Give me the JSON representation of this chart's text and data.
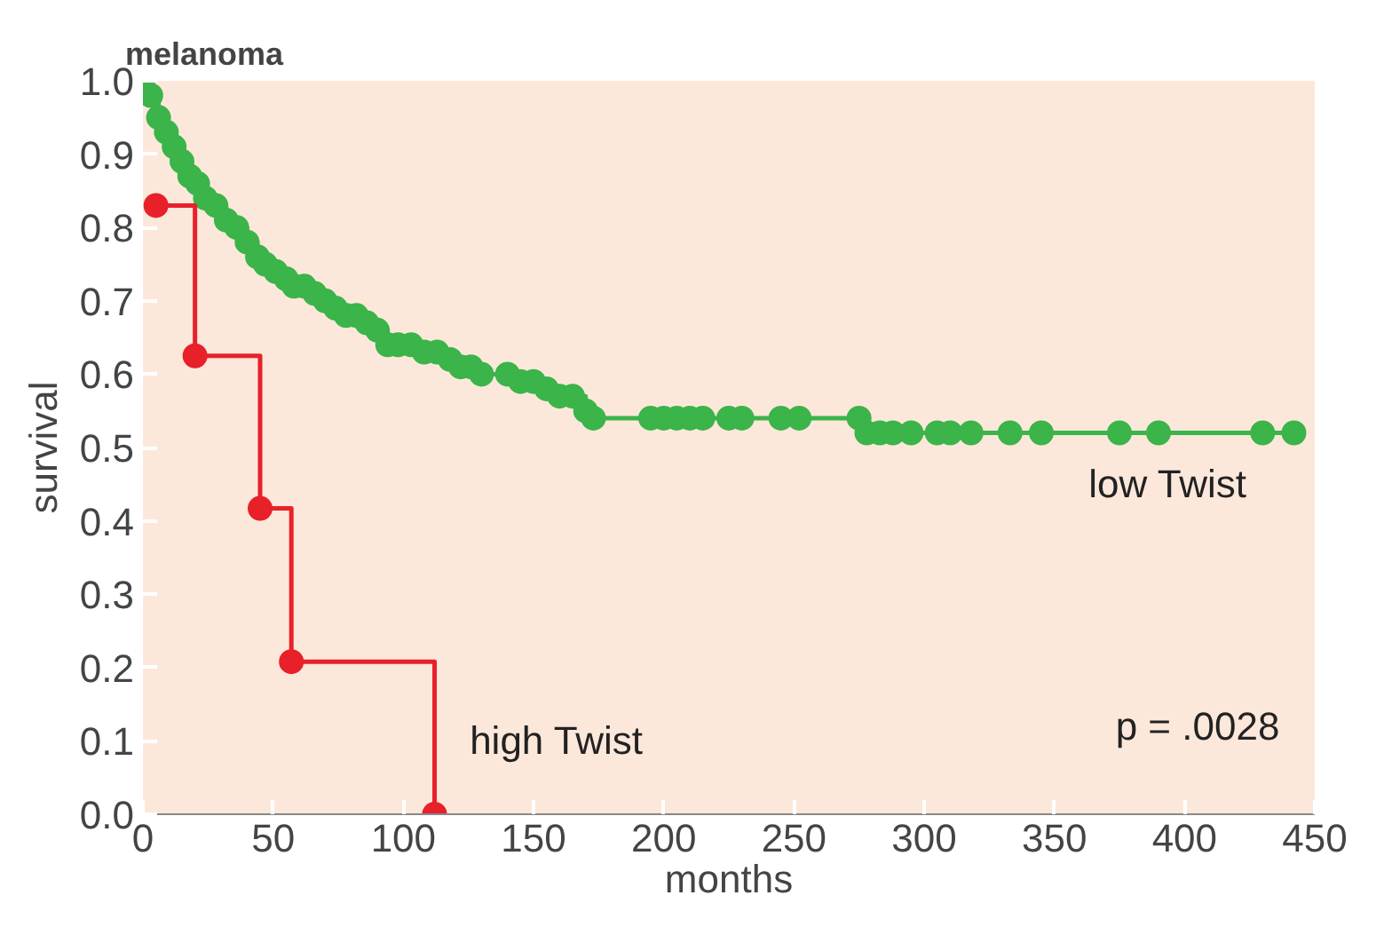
{
  "chart_data": {
    "type": "step",
    "title": "melanoma",
    "xlabel": "months",
    "ylabel": "survival",
    "xlim": [
      0,
      450
    ],
    "ylim": [
      0,
      1.0
    ],
    "xticks": [
      0,
      50,
      100,
      150,
      200,
      250,
      300,
      350,
      400,
      450
    ],
    "yticks": [
      {
        "value": 0,
        "label": "0.0"
      },
      0.1,
      0.2,
      0.3,
      0.4,
      0.5,
      0.6,
      0.7,
      0.8,
      0.9,
      {
        "value": 1,
        "label": "1.0"
      }
    ],
    "grid": false,
    "marker": "circle",
    "line_style": "solid",
    "annotations": [
      "p = .0028"
    ],
    "series": [
      {
        "name": "low Twist",
        "color": "#3bb44a",
        "x": [
          0,
          3,
          6,
          9,
          12,
          15,
          18,
          21,
          24,
          28,
          32,
          36,
          40,
          44,
          47,
          51,
          55,
          58,
          62,
          66,
          70,
          74,
          78,
          82,
          86,
          90,
          94,
          98,
          103,
          108,
          113,
          118,
          122,
          126,
          130,
          140,
          145,
          150,
          155,
          160,
          165,
          170,
          173,
          195,
          200,
          205,
          210,
          215,
          225,
          230,
          245,
          252,
          275,
          278,
          283,
          288,
          295,
          305,
          310,
          318,
          333,
          345,
          375,
          390,
          430,
          442
        ],
        "values": [
          1.0,
          0.98,
          0.95,
          0.93,
          0.91,
          0.89,
          0.87,
          0.86,
          0.84,
          0.83,
          0.81,
          0.8,
          0.78,
          0.76,
          0.75,
          0.74,
          0.73,
          0.72,
          0.72,
          0.71,
          0.7,
          0.69,
          0.68,
          0.68,
          0.67,
          0.66,
          0.64,
          0.64,
          0.64,
          0.63,
          0.63,
          0.62,
          0.61,
          0.61,
          0.6,
          0.6,
          0.59,
          0.59,
          0.58,
          0.57,
          0.57,
          0.55,
          0.54,
          0.54,
          0.54,
          0.54,
          0.54,
          0.54,
          0.54,
          0.54,
          0.54,
          0.54,
          0.54,
          0.52,
          0.52,
          0.52,
          0.52,
          0.52,
          0.52,
          0.52,
          0.52,
          0.52,
          0.52,
          0.52,
          0.52,
          0.52
        ]
      },
      {
        "name": "high Twist",
        "color": "#e8202a",
        "x": [
          5,
          20,
          45,
          57,
          112
        ],
        "values": [
          0.83,
          0.625,
          0.417,
          0.208,
          0
        ]
      }
    ]
  }
}
